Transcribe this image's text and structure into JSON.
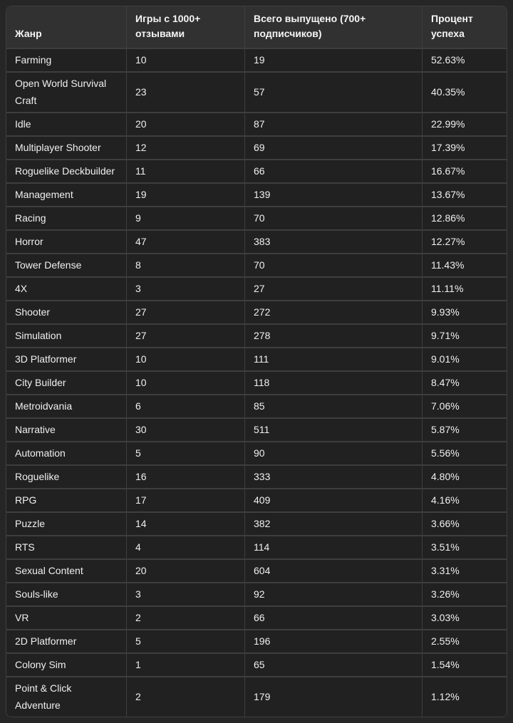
{
  "colors": {
    "page_background": "#262626",
    "header_background": "#313131",
    "row_background": "#212121",
    "border": "#3e3e3e",
    "text": "#f2f2f2"
  },
  "chart_data": {
    "type": "table",
    "columns": [
      "Жанр",
      "Игры с 1000+ отзывами",
      "Всего выпущено (700+ подписчиков)",
      "Процент успеха"
    ],
    "rows": [
      [
        "Farming",
        "10",
        "19",
        "52.63%"
      ],
      [
        "Open World Survival Craft",
        "23",
        "57",
        "40.35%"
      ],
      [
        "Idle",
        "20",
        "87",
        "22.99%"
      ],
      [
        "Multiplayer Shooter",
        "12",
        "69",
        "17.39%"
      ],
      [
        "Roguelike Deckbuilder",
        "11",
        "66",
        "16.67%"
      ],
      [
        "Management",
        "19",
        "139",
        "13.67%"
      ],
      [
        "Racing",
        "9",
        "70",
        "12.86%"
      ],
      [
        "Horror",
        "47",
        "383",
        "12.27%"
      ],
      [
        "Tower Defense",
        "8",
        "70",
        "11.43%"
      ],
      [
        "4X",
        "3",
        "27",
        "11.11%"
      ],
      [
        "Shooter",
        "27",
        "272",
        "9.93%"
      ],
      [
        "Simulation",
        "27",
        "278",
        "9.71%"
      ],
      [
        "3D Platformer",
        "10",
        "111",
        "9.01%"
      ],
      [
        "City Builder",
        "10",
        "118",
        "8.47%"
      ],
      [
        "Metroidvania",
        "6",
        "85",
        "7.06%"
      ],
      [
        "Narrative",
        "30",
        "511",
        "5.87%"
      ],
      [
        "Automation",
        "5",
        "90",
        "5.56%"
      ],
      [
        "Roguelike",
        "16",
        "333",
        "4.80%"
      ],
      [
        "RPG",
        "17",
        "409",
        "4.16%"
      ],
      [
        "Puzzle",
        "14",
        "382",
        "3.66%"
      ],
      [
        "RTS",
        "4",
        "114",
        "3.51%"
      ],
      [
        "Sexual Content",
        "20",
        "604",
        "3.31%"
      ],
      [
        "Souls-like",
        "3",
        "92",
        "3.26%"
      ],
      [
        "VR",
        "2",
        "66",
        "3.03%"
      ],
      [
        "2D Platformer",
        "5",
        "196",
        "2.55%"
      ],
      [
        "Colony Sim",
        "1",
        "65",
        "1.54%"
      ],
      [
        "Point & Click Adventure",
        "2",
        "179",
        "1.12%"
      ]
    ]
  }
}
